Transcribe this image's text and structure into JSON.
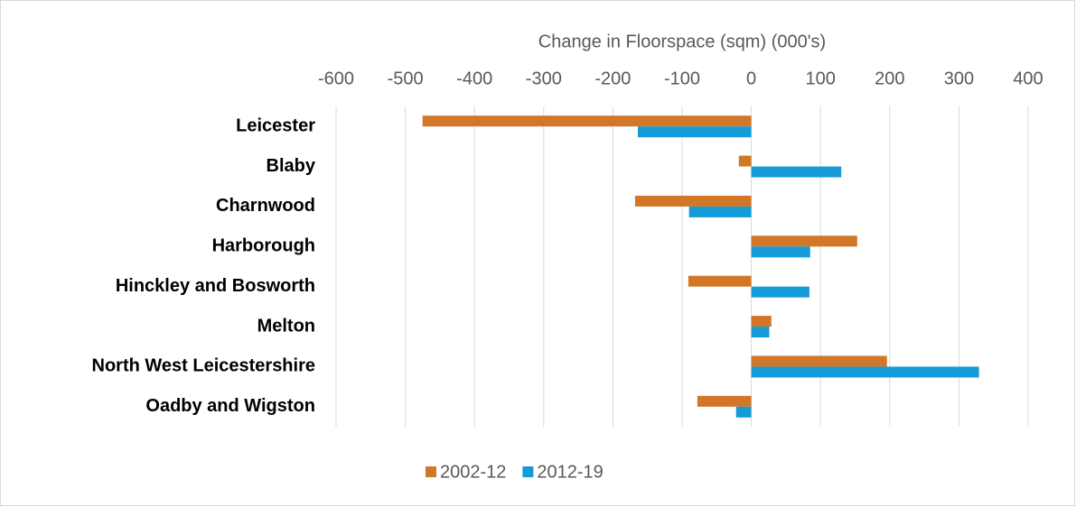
{
  "chart_data": {
    "type": "hbar",
    "title": "Change in Floorspace (sqm) (000's)",
    "categories": [
      "Leicester",
      "Blaby",
      "Charnwood",
      "Harborough",
      "Hinckley and Bosworth",
      "Melton",
      "North West Leicestershire",
      "Oadby and Wigston"
    ],
    "series": [
      {
        "name": "2002-12",
        "color": "#d27628",
        "values": [
          -475,
          -18,
          -168,
          153,
          -91,
          29,
          196,
          -78
        ]
      },
      {
        "name": "2012-19",
        "color": "#159bd7",
        "values": [
          -164,
          130,
          -90,
          85,
          84,
          26,
          329,
          -22
        ]
      }
    ],
    "xlim": [
      -600,
      400
    ],
    "xticks": [
      -600,
      -500,
      -400,
      -300,
      -200,
      -100,
      0,
      100,
      200,
      300,
      400
    ],
    "grid": true,
    "legend": "bottom"
  }
}
